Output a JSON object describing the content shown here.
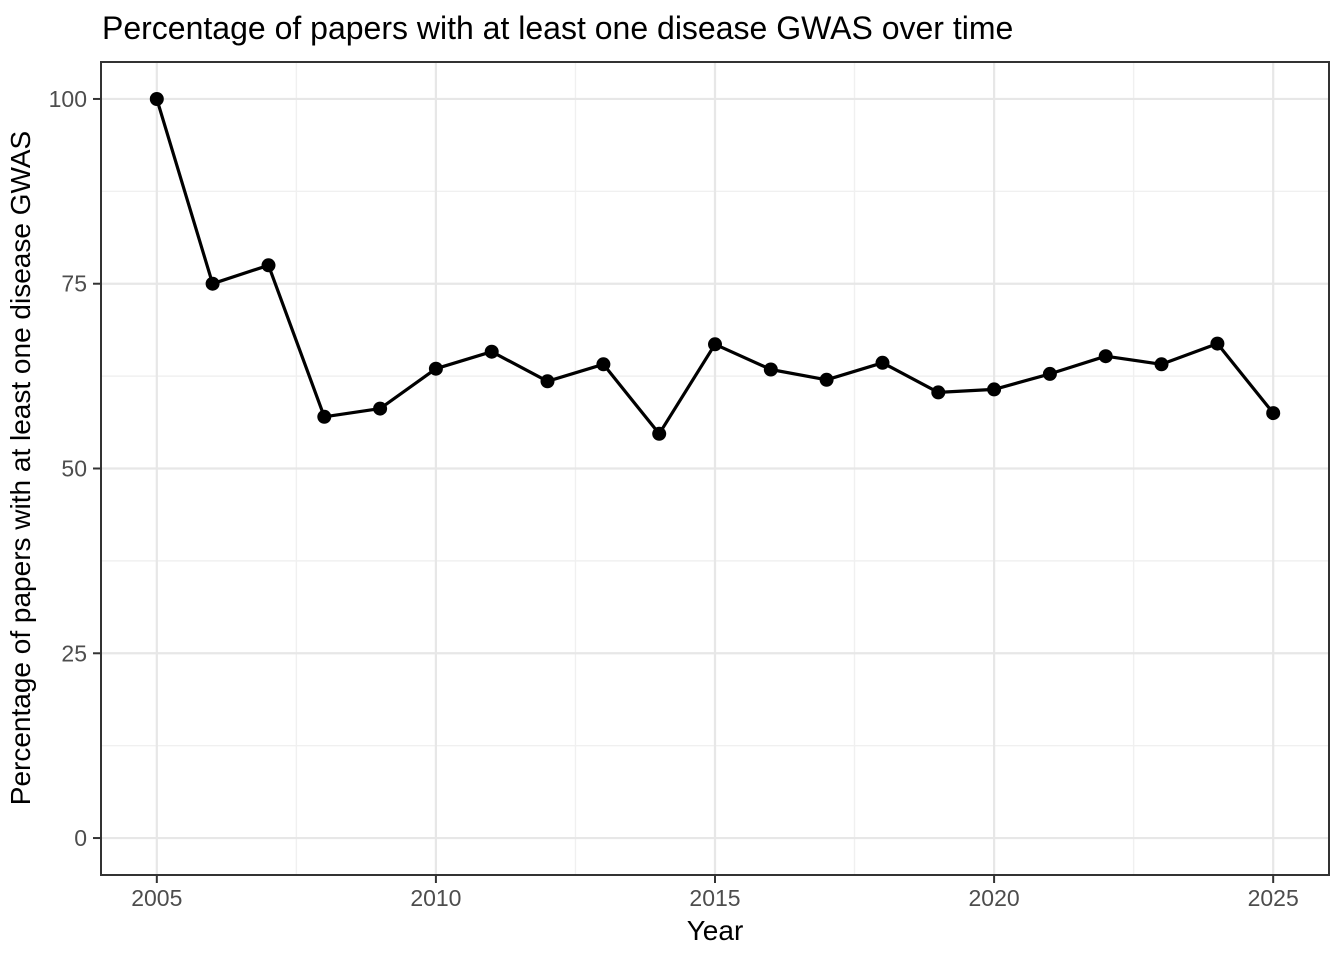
{
  "chart_data": {
    "type": "line",
    "title": "Percentage of papers with at least one disease GWAS over time",
    "xlabel": "Year",
    "ylabel": "Percentage of papers with at least one disease GWAS",
    "series_name": "percent-papers-with-disease-gwas",
    "x": [
      2005,
      2006,
      2007,
      2008,
      2009,
      2010,
      2011,
      2012,
      2013,
      2014,
      2015,
      2016,
      2017,
      2018,
      2019,
      2020,
      2021,
      2022,
      2023,
      2024,
      2025
    ],
    "values": [
      100,
      75,
      77.5,
      57,
      58.1,
      63.5,
      65.8,
      61.8,
      64.1,
      54.7,
      66.8,
      63.4,
      62,
      64.3,
      60.3,
      60.7,
      62.8,
      65.2,
      64.1,
      66.9,
      57.5
    ],
    "x_ticks": [
      2005,
      2010,
      2015,
      2020,
      2025
    ],
    "y_ticks": [
      0,
      25,
      50,
      75,
      100
    ],
    "x_minor": [
      2007.5,
      2012.5,
      2017.5,
      2022.5
    ],
    "y_minor": [
      12.5,
      37.5,
      62.5,
      87.5
    ],
    "xlim": [
      2004,
      2026
    ],
    "ylim": [
      -5,
      105
    ],
    "grid": true,
    "legend": false,
    "marker": "point",
    "colors": {
      "line": "#000000",
      "point": "#000000",
      "grid_major": "#e7e7e7",
      "grid_minor": "#f0f0f0",
      "panel_border": "#333333",
      "tick": "#333333",
      "tick_label": "#4d4d4d",
      "text": "#000000",
      "background": "#ffffff"
    }
  }
}
